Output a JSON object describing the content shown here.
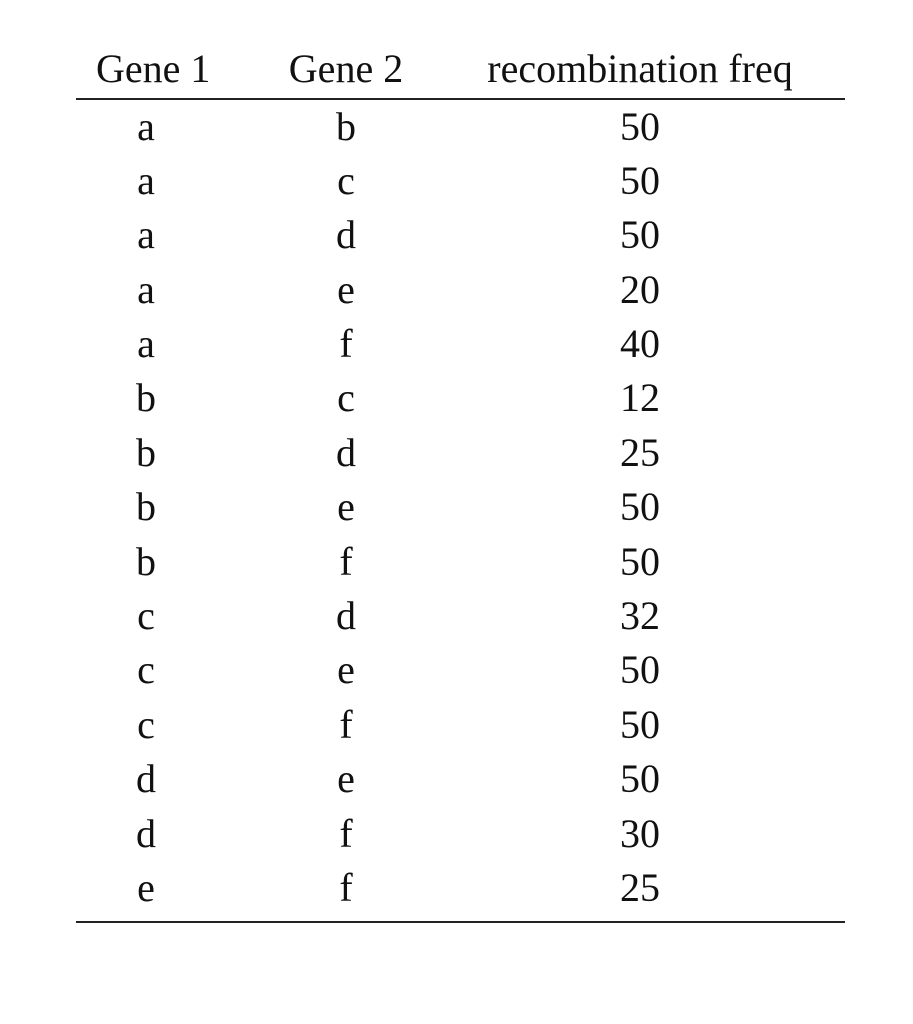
{
  "table": {
    "headers": [
      "Gene 1",
      "Gene 2",
      "recombination freq"
    ],
    "rows": [
      [
        "a",
        "b",
        "50"
      ],
      [
        "a",
        "c",
        "50"
      ],
      [
        "a",
        "d",
        "50"
      ],
      [
        "a",
        "e",
        "20"
      ],
      [
        "a",
        "f",
        "40"
      ],
      [
        "b",
        "c",
        "12"
      ],
      [
        "b",
        "d",
        "25"
      ],
      [
        "b",
        "e",
        "50"
      ],
      [
        "b",
        "f",
        "50"
      ],
      [
        "c",
        "d",
        "32"
      ],
      [
        "c",
        "e",
        "50"
      ],
      [
        "c",
        "f",
        "50"
      ],
      [
        "d",
        "e",
        "50"
      ],
      [
        "d",
        "f",
        "30"
      ],
      [
        "e",
        "f",
        "25"
      ]
    ]
  }
}
